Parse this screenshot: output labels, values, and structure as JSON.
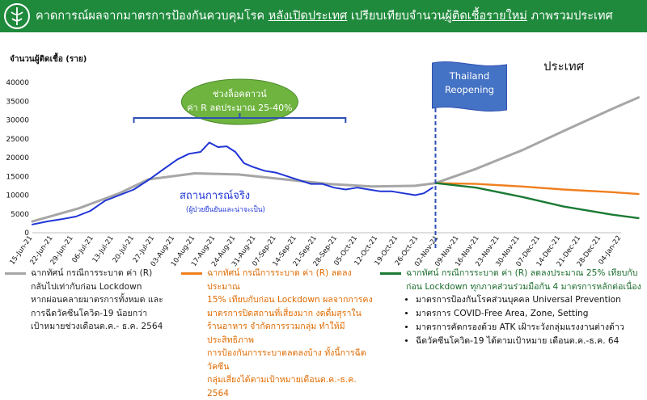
{
  "header": {
    "title_part1": "คาดการณ์ผลจากมาตรการป้องกันควบคุมโรค ",
    "title_underline1": "หลังเปิดประเทศ",
    "title_part2": " เปรียบเทียบจำนวน",
    "title_underline2": "ผู้ติดเชื้อรายใหม่",
    "title_part3": " ภาพรวมประเทศ"
  },
  "colors": {
    "header_bg": "#1f8a3c",
    "actual": "#1f35d6",
    "gray_scenario": "#a6a6a6",
    "orange_scenario": "#f07f1e",
    "green_scenario": "#1a7a34",
    "flag": "#4472c4",
    "lockdown_ellipse": "#6fb43f"
  },
  "chart_data": {
    "type": "line",
    "ylabel": "จำนวนผู้ติดเชื้อ (ราย)",
    "ylim": [
      0,
      40000
    ],
    "yticks": [
      0,
      5000,
      10000,
      15000,
      20000,
      25000,
      30000,
      35000,
      40000
    ],
    "xlim": [
      "2021-06-15",
      "2022-01-04"
    ],
    "xtick_labels": [
      "15-Jun-21",
      "22-Jun-21",
      "29-Jun-21",
      "06-Jul-21",
      "13-Jul-21",
      "20-Jul-21",
      "27-Jul-21",
      "03-Aug-21",
      "10-Aug-21",
      "17-Aug-21",
      "24-Aug-21",
      "31-Aug-21",
      "07-Sep-21",
      "14-Sep-21",
      "21-Sep-21",
      "28-Sep-21",
      "05-Oct-21",
      "12-Oct-21",
      "19-Oct-21",
      "26-Oct-21",
      "02-Nov-21",
      "09-Nov-21",
      "16-Nov-21",
      "23-Nov-21",
      "30-Nov-21",
      "07-Dec-21",
      "14-Dec-21",
      "21-Dec-21",
      "28-Dec-21",
      "04-Jan-22"
    ],
    "series": [
      {
        "name": "สถานการณ์จริง",
        "subname": "(ผู้ป่วยยืนยันและน่าจะเป็น)",
        "color": "#1f35d6",
        "x": [
          "2021-06-15",
          "2021-06-20",
          "2021-06-25",
          "2021-06-30",
          "2021-07-05",
          "2021-07-10",
          "2021-07-15",
          "2021-07-20",
          "2021-07-25",
          "2021-07-30",
          "2021-08-04",
          "2021-08-08",
          "2021-08-12",
          "2021-08-15",
          "2021-08-18",
          "2021-08-21",
          "2021-08-24",
          "2021-08-27",
          "2021-08-30",
          "2021-09-03",
          "2021-09-07",
          "2021-09-11",
          "2021-09-15",
          "2021-09-19",
          "2021-09-23",
          "2021-09-27",
          "2021-10-01",
          "2021-10-05",
          "2021-10-09",
          "2021-10-13",
          "2021-10-17",
          "2021-10-21",
          "2021-10-25",
          "2021-10-28",
          "2021-10-31"
        ],
        "y": [
          2200,
          3000,
          3600,
          4300,
          5800,
          8500,
          10000,
          11500,
          14000,
          16800,
          19500,
          21000,
          21500,
          24000,
          22800,
          23000,
          21500,
          18500,
          17500,
          16500,
          16000,
          15000,
          14000,
          13000,
          13000,
          12000,
          11500,
          12000,
          11500,
          11000,
          11000,
          10500,
          10000,
          10500,
          12000
        ]
      },
      {
        "name": "",
        "color": "#a6a6a6",
        "x": [
          "2021-06-15",
          "2021-07-01",
          "2021-07-15",
          "2021-07-25",
          "2021-08-10",
          "2021-08-25",
          "2021-09-10",
          "2021-09-25",
          "2021-10-10",
          "2021-10-25",
          "2021-11-01",
          "2021-11-15",
          "2021-12-01",
          "2021-12-15",
          "2022-01-01",
          "2022-01-10"
        ],
        "y": [
          3000,
          6500,
          10500,
          14200,
          15800,
          15500,
          14200,
          13000,
          12300,
          12500,
          13200,
          17000,
          22000,
          27000,
          33000,
          36000
        ]
      },
      {
        "name": "",
        "color": "#f07f1e",
        "x": [
          "2021-11-01",
          "2021-11-15",
          "2021-12-01",
          "2021-12-15",
          "2022-01-01",
          "2022-01-10"
        ],
        "y": [
          13200,
          13000,
          12300,
          11500,
          10800,
          10300
        ]
      },
      {
        "name": "",
        "color": "#1a7a34",
        "x": [
          "2021-11-01",
          "2021-11-15",
          "2021-12-01",
          "2021-12-15",
          "2022-01-01",
          "2022-01-10"
        ],
        "y": [
          13200,
          12000,
          9500,
          7000,
          4800,
          3900
        ]
      }
    ],
    "annotations": {
      "lockdown_title": "ช่วงล็อคดาวน์",
      "lockdown_subtitle": "ค่า R ลดประมาณ 25-40%",
      "lockdown_range": [
        "2021-07-20",
        "2021-10-01"
      ],
      "reopening_label_1": "Thailand",
      "reopening_label_2": "Reopening",
      "reopening_date": "2021-11-01",
      "region_label": "ประเทศ",
      "actual_label": "สถานการณ์จริง",
      "actual_sublabel": "(ผู้ป่วยยืนยันและน่าจะเป็น)"
    }
  },
  "notes": {
    "gray": "ฉากทัศน์ กรณีการระบาด ค่า (R)\nกลับไปเท่ากับก่อน Lockdown\nหากผ่อนคลายมาตรการทั้งหมด และ\nการฉีดวัคซีนโควิด-19 น้อยกว่า\nเป้าหมายช่วงเดือนต.ค.- ธ.ค. 2564",
    "orange": "ฉากทัศน์ กรณีการระบาด ค่า (R) ลดลงประมาณ\n15% เทียบกับก่อน Lockdown ผลจากการคง\nมาตรการปิดสถานที่เสี่ยงมาก งดดื่มสุราใน\nร้านอาหาร จำกัดการรวมกลุ่ม ทำให้มีประสิทธิภาพ\nการป้องกันการระบาดลดลงบ้าง ทั้งนี้การฉีดวัคซีน\nกลุ่มเสี่ยงได้ตามเป้าหมายเดือนต.ค.-ธ.ค. 2564",
    "green": "ฉากทัศน์ กรณีการระบาด ค่า (R) ลดลงประมาณ 25% เทียบกับ\nก่อน Lockdown ทุกภาคส่วนร่วมมือกัน 4 มาตรการหลักต่อเนื่อง",
    "green_items": [
      "มาตรการป้องกันโรคส่วนบุคคล Universal Prevention",
      "มาตรการ COVID-Free Area, Zone, Setting",
      "มาตรการคัดกรองด้วย ATK เฝ้าระวังกลุ่มแรงงานต่างด้าว",
      "ฉีดวัคซีนโควิด-19 ได้ตามเป้าหมาย เดือนต.ค.-ธ.ค. 64"
    ]
  }
}
